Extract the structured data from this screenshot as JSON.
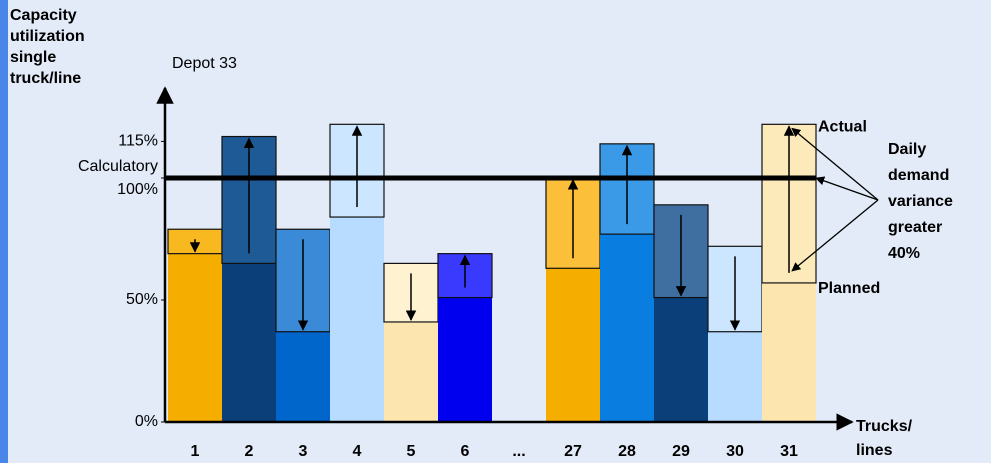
{
  "chart_data": {
    "type": "planned-actual-bar",
    "title": "Depot 33",
    "y_label": [
      "Capacity",
      "utilization",
      "single",
      "truck/line"
    ],
    "x_label": [
      "Trucks/",
      "lines"
    ],
    "categories": [
      "1",
      "2",
      "3",
      "4",
      "5",
      "6",
      "...",
      "27",
      "28",
      "29",
      "30",
      "31"
    ],
    "series": [
      {
        "name": "Planned",
        "values": [
          79,
          65,
          79,
          84,
          65,
          51,
          null,
          63,
          77,
          89,
          72,
          57
        ]
      },
      {
        "name": "Actual",
        "values": [
          69,
          117,
          37,
          122,
          41,
          69,
          null,
          100,
          114,
          51,
          37,
          122
        ]
      }
    ],
    "base_colors": [
      "#f5ae00",
      "#0a3f7a",
      "#0066cc",
      "#b8dcff",
      "#fde5b0",
      "#0000ee",
      null,
      "#f5ae00",
      "#0a7ee0",
      "#0a3f7a",
      "#b8dcff",
      "#fde5b0"
    ],
    "box_colors": [
      "#f8b820",
      "#1e5a96",
      "#3a8ad8",
      "#cce6ff",
      "#fff2d0",
      "#3a3aff",
      null,
      "#fbbf3a",
      "#3a9ae8",
      "#3f6fa0",
      "#cce6ff",
      "#fdeabb"
    ],
    "reference_line": {
      "label": "Calculatory",
      "value": 100
    },
    "annotation": [
      "Daily",
      "demand",
      "variance",
      "greater",
      "40%"
    ],
    "ylim": [
      0,
      135
    ],
    "yticks": [
      {
        "value": 0,
        "label": "0%"
      },
      {
        "value": 50,
        "label": "50%"
      },
      {
        "value": 100,
        "label": "100%"
      },
      {
        "value": 115,
        "label": "115%"
      }
    ]
  }
}
